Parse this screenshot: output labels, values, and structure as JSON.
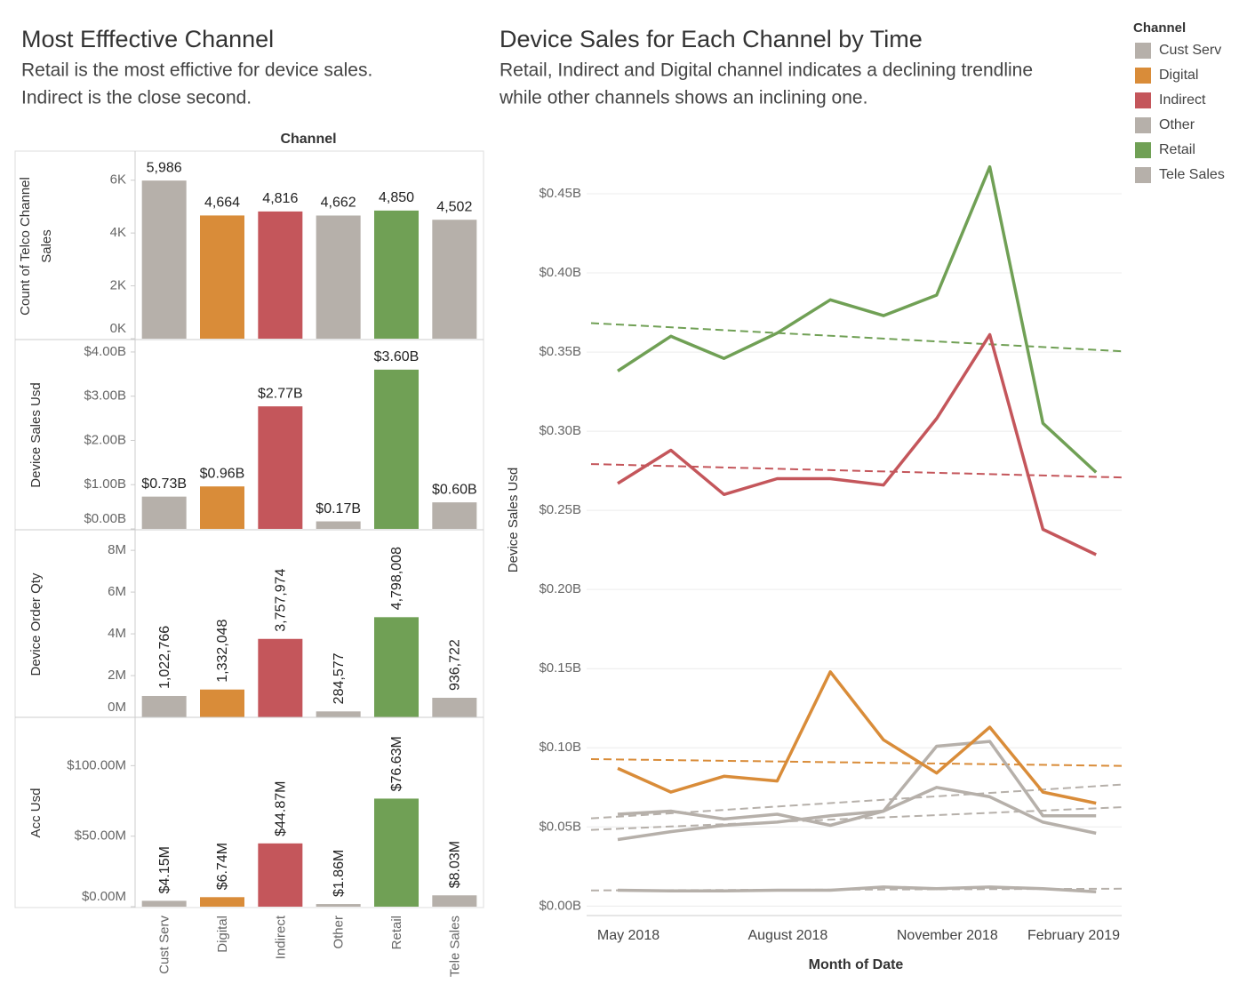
{
  "chart_data": [
    {
      "type": "bar",
      "title": "Most Efffective Channel",
      "subtitle": [
        "Retail is the most effictive for device sales.",
        "Indirect is the close second."
      ],
      "x_label": "Channel",
      "y_label": [
        "Count of Telco Channel",
        "Sales"
      ],
      "values": [
        5986,
        4664,
        4816,
        4662,
        4850,
        4502
      ],
      "value_labels": [
        "5,986",
        "4,664",
        "4,816",
        "4,662",
        "4,850",
        "4,502"
      ],
      "colors": [
        "#b6b0aa",
        "#d98c39",
        "#c4565b",
        "#b6b0aa",
        "#70a055",
        "#b6b0aa"
      ],
      "ylim": [
        0,
        7000
      ],
      "yticks": [
        {
          "value": 0,
          "label": "0K"
        },
        {
          "value": 2000,
          "label": "2K"
        },
        {
          "value": 4000,
          "label": "4K"
        },
        {
          "value": 6000,
          "label": "6K"
        }
      ]
    },
    {
      "type": "bar",
      "y_label": [
        "Device Sales Usd"
      ],
      "values": [
        0.73,
        0.96,
        2.77,
        0.17,
        3.6,
        0.6
      ],
      "value_labels": [
        "$0.73B",
        "$0.96B",
        "$2.77B",
        "$0.17B",
        "$3.60B",
        "$0.60B"
      ],
      "colors": [
        "#b6b0aa",
        "#d98c39",
        "#c4565b",
        "#b6b0aa",
        "#70a055",
        "#b6b0aa"
      ],
      "ylim": [
        0,
        4.24
      ],
      "yticks": [
        {
          "value": 0,
          "label": "$0.00B"
        },
        {
          "value": 1,
          "label": "$1.00B"
        },
        {
          "value": 2,
          "label": "$2.00B"
        },
        {
          "value": 3,
          "label": "$3.00B"
        },
        {
          "value": 4,
          "label": "$4.00B"
        }
      ]
    },
    {
      "type": "bar",
      "y_label": [
        "Device Order Qty"
      ],
      "vertical_labels": true,
      "values": [
        1022766,
        1332048,
        3757974,
        284577,
        4798008,
        936722
      ],
      "value_labels": [
        "1,022,766",
        "1,332,048",
        "3,757,974",
        "284,577",
        "4,798,008",
        "936,722"
      ],
      "colors": [
        "#b6b0aa",
        "#d98c39",
        "#c4565b",
        "#b6b0aa",
        "#70a055",
        "#b6b0aa"
      ],
      "ylim": [
        0,
        8900000
      ],
      "yticks": [
        {
          "value": 0,
          "label": "0M"
        },
        {
          "value": 2000000,
          "label": "2M"
        },
        {
          "value": 4000000,
          "label": "4M"
        },
        {
          "value": 6000000,
          "label": "6M"
        },
        {
          "value": 8000000,
          "label": "8M"
        }
      ]
    },
    {
      "type": "bar",
      "y_label": [
        "Acc Usd"
      ],
      "vertical_labels": true,
      "categories": [
        "Cust Serv",
        "Digital",
        "Indirect",
        "Other",
        "Retail",
        "Tele Sales"
      ],
      "values": [
        4.15,
        6.74,
        44.87,
        1.86,
        76.63,
        8.03
      ],
      "value_labels": [
        "$4.15M",
        "$6.74M",
        "$44.87M",
        "$1.86M",
        "$76.63M",
        "$8.03M"
      ],
      "colors": [
        "#b6b0aa",
        "#d98c39",
        "#c4565b",
        "#b6b0aa",
        "#70a055",
        "#b6b0aa"
      ],
      "ylim": [
        0,
        133
      ],
      "yticks": [
        {
          "value": 0,
          "label": "$0.00M"
        },
        {
          "value": 50,
          "label": "$50.00M"
        },
        {
          "value": 100,
          "label": "$100.00M"
        }
      ]
    },
    {
      "type": "line",
      "title": "Device Sales for Each Channel by Time",
      "subtitle": [
        "Retail, Indirect and Digital channel indicates a declining trendline",
        "while other channels shows an inclining one."
      ],
      "x_label": "Month of Date",
      "y_label": "Device Sales Usd",
      "legend_title": "Channel",
      "legend": "right",
      "grid": true,
      "trendline": true,
      "categories": [
        "May 2018",
        null,
        null,
        "August 2018",
        null,
        null,
        "November 2018",
        null,
        null,
        "February 2019"
      ],
      "ylim": [
        -0.006,
        0.491
      ],
      "yticks": [
        {
          "value": 0,
          "label": "$0.00B"
        },
        {
          "value": 0.05,
          "label": "$0.05B"
        },
        {
          "value": 0.1,
          "label": "$0.10B"
        },
        {
          "value": 0.15,
          "label": "$0.15B"
        },
        {
          "value": 0.2,
          "label": "$0.20B"
        },
        {
          "value": 0.25,
          "label": "$0.25B"
        },
        {
          "value": 0.3,
          "label": "$0.30B"
        },
        {
          "value": 0.35,
          "label": "$0.35B"
        },
        {
          "value": 0.4,
          "label": "$0.40B"
        },
        {
          "value": 0.45,
          "label": "$0.45B"
        }
      ],
      "series": [
        {
          "name": "Cust Serv",
          "color": "#b6b0aa",
          "values": [
            0.058,
            0.06,
            0.055,
            0.058,
            0.051,
            0.06,
            0.101,
            0.104,
            0.057,
            0.057
          ]
        },
        {
          "name": "Digital",
          "color": "#d98c39",
          "values": [
            0.087,
            0.072,
            0.082,
            0.079,
            0.148,
            0.105,
            0.084,
            0.113,
            0.072,
            0.065
          ]
        },
        {
          "name": "Indirect",
          "color": "#c4565b",
          "values": [
            0.267,
            0.288,
            0.26,
            0.27,
            0.27,
            0.266,
            0.308,
            0.361,
            0.238,
            0.222
          ]
        },
        {
          "name": "Other",
          "color": "#b6b0aa",
          "values": [
            0.01,
            0.0096,
            0.0096,
            0.01,
            0.01,
            0.012,
            0.011,
            0.012,
            0.011,
            0.009
          ]
        },
        {
          "name": "Retail",
          "color": "#70a055",
          "values": [
            0.338,
            0.36,
            0.346,
            0.362,
            0.383,
            0.373,
            0.386,
            0.467,
            0.305,
            0.274
          ]
        },
        {
          "name": "Tele Sales",
          "color": "#b6b0aa",
          "values": [
            0.042,
            0.047,
            0.051,
            0.053,
            0.057,
            0.06,
            0.075,
            0.069,
            0.053,
            0.046
          ]
        }
      ]
    }
  ]
}
